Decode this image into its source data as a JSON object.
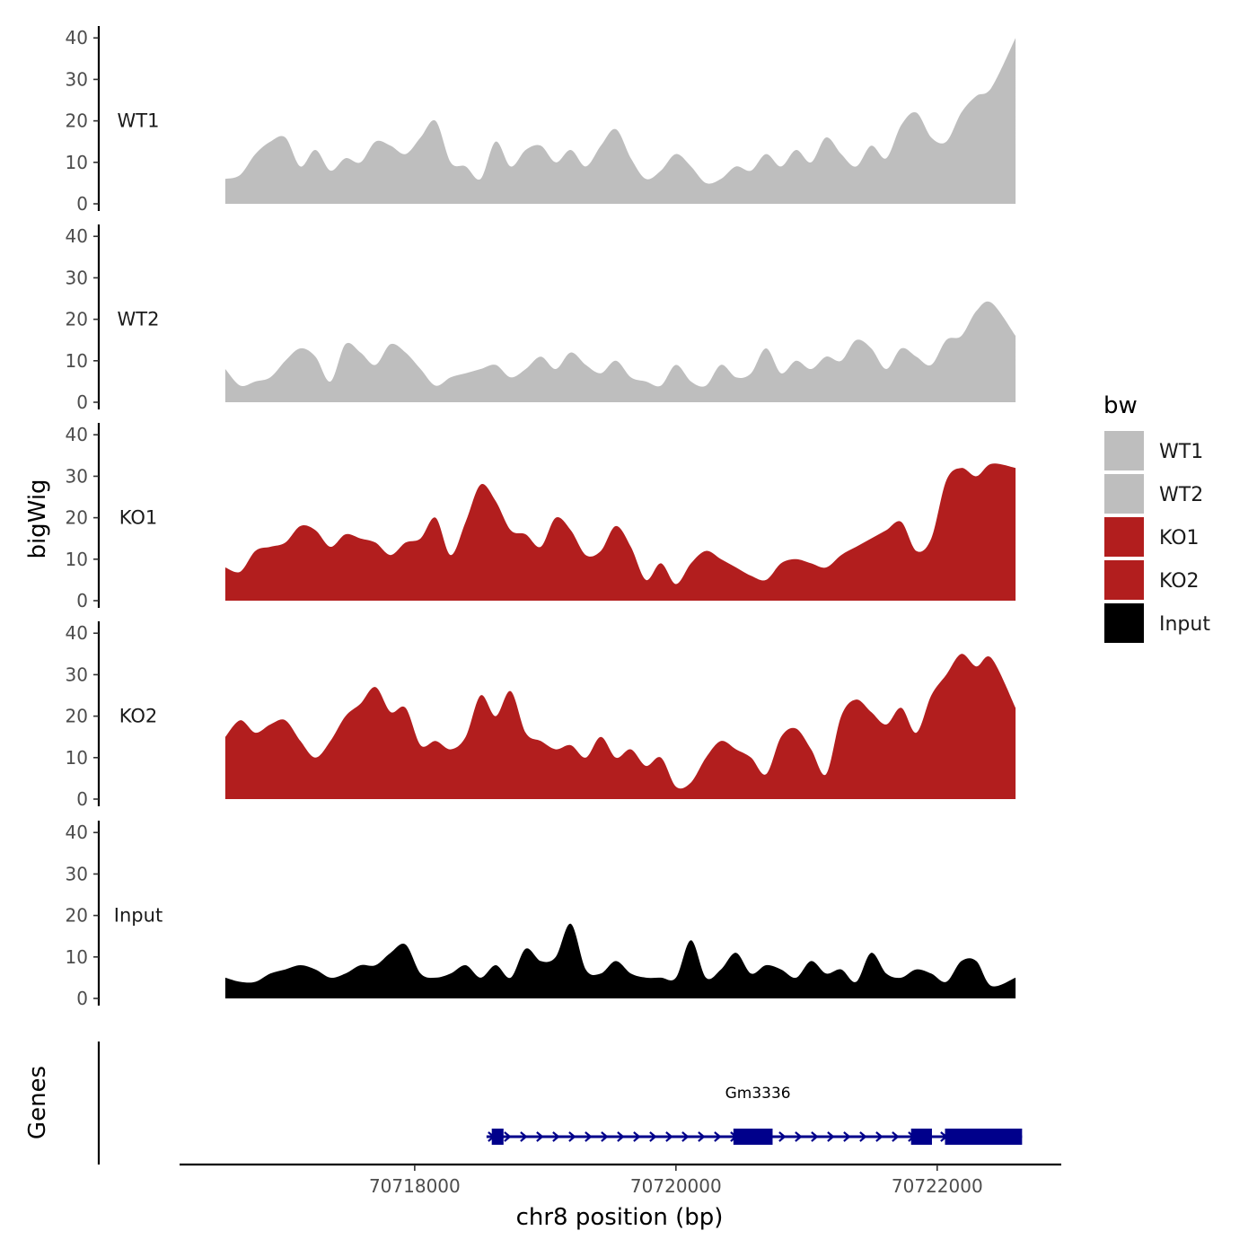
{
  "chart_data": {
    "type": "area",
    "ylabel": "bigWig",
    "xlabel": "chr8 position (bp)",
    "xlim": [
      70716200,
      70722950
    ],
    "ylim": [
      0,
      42
    ],
    "y_ticks": [
      0,
      10,
      20,
      30,
      40
    ],
    "x_ticks": [
      70718000,
      70720000,
      70722000
    ],
    "x_tick_labels": [
      "70718000",
      "70720000",
      "70722000"
    ],
    "legend": {
      "title": "bw",
      "placement": "right",
      "entries": [
        {
          "label": "WT1",
          "color": "#bebebe"
        },
        {
          "label": "WT2",
          "color": "#bebebe"
        },
        {
          "label": "KO1",
          "color": "#b21e1e"
        },
        {
          "label": "KO2",
          "color": "#b21e1e"
        },
        {
          "label": "Input",
          "color": "#000000"
        }
      ]
    },
    "x": [
      70716550,
      70716665,
      70716780,
      70716895,
      70717010,
      70717125,
      70717240,
      70717355,
      70717470,
      70717585,
      70717700,
      70717815,
      70717930,
      70718045,
      70718160,
      70718275,
      70718390,
      70718505,
      70718620,
      70718735,
      70718850,
      70718965,
      70719080,
      70719195,
      70719310,
      70719425,
      70719540,
      70719655,
      70719770,
      70719885,
      70720000,
      70720115,
      70720230,
      70720345,
      70720460,
      70720575,
      70720690,
      70720805,
      70720920,
      70721035,
      70721150,
      70721265,
      70721380,
      70721495,
      70721610,
      70721725,
      70721840,
      70721955,
      70722070,
      70722185,
      70722300,
      70722415,
      70722600
    ],
    "series": [
      {
        "name": "WT1",
        "color": "#bebebe",
        "values": [
          6,
          7,
          12,
          15,
          16,
          9,
          13,
          8,
          11,
          10,
          15,
          14,
          12,
          16,
          20,
          10,
          9,
          6,
          15,
          9,
          13,
          14,
          10,
          13,
          9,
          14,
          18,
          11,
          6,
          8,
          12,
          9,
          5,
          6,
          9,
          8,
          12,
          9,
          13,
          10,
          16,
          12,
          9,
          14,
          11,
          19,
          22,
          16,
          15,
          22,
          26,
          28,
          40
        ]
      },
      {
        "name": "WT2",
        "color": "#bebebe",
        "values": [
          8,
          4,
          5,
          6,
          10,
          13,
          11,
          5,
          14,
          12,
          9,
          14,
          12,
          8,
          4,
          6,
          7,
          8,
          9,
          6,
          8,
          11,
          8,
          12,
          9,
          7,
          10,
          6,
          5,
          4,
          9,
          5,
          4,
          9,
          6,
          7,
          13,
          7,
          10,
          8,
          11,
          10,
          15,
          13,
          8,
          13,
          11,
          9,
          15,
          16,
          22,
          24,
          16
        ]
      },
      {
        "name": "KO1",
        "color": "#b21e1e",
        "values": [
          8,
          7,
          12,
          13,
          14,
          18,
          17,
          13,
          16,
          15,
          14,
          11,
          14,
          15,
          20,
          11,
          19,
          28,
          24,
          17,
          16,
          13,
          20,
          17,
          11,
          12,
          18,
          13,
          5,
          9,
          4,
          9,
          12,
          10,
          8,
          6,
          5,
          9,
          10,
          9,
          8,
          11,
          13,
          15,
          17,
          19,
          12,
          15,
          29,
          32,
          30,
          33,
          32
        ]
      },
      {
        "name": "KO2",
        "color": "#b21e1e",
        "values": [
          15,
          19,
          16,
          18,
          19,
          14,
          10,
          14,
          20,
          23,
          27,
          21,
          22,
          13,
          14,
          12,
          15,
          25,
          20,
          26,
          16,
          14,
          12,
          13,
          10,
          15,
          10,
          12,
          8,
          10,
          3,
          4,
          10,
          14,
          12,
          10,
          6,
          15,
          17,
          12,
          6,
          20,
          24,
          21,
          18,
          22,
          16,
          25,
          30,
          35,
          32,
          34,
          22
        ]
      },
      {
        "name": "Input",
        "color": "#000000",
        "values": [
          5,
          4,
          4,
          6,
          7,
          8,
          7,
          5,
          6,
          8,
          8,
          11,
          13,
          6,
          5,
          6,
          8,
          5,
          8,
          5,
          12,
          9,
          10,
          18,
          7,
          6,
          9,
          6,
          5,
          5,
          5,
          14,
          5,
          7,
          11,
          6,
          8,
          7,
          5,
          9,
          6,
          7,
          4,
          11,
          6,
          5,
          7,
          6,
          4,
          9,
          9,
          3,
          5
        ]
      }
    ],
    "genes_track": {
      "label": "Genes",
      "genes": [
        {
          "name": "Gm3336",
          "strand": "+",
          "start": 70718550,
          "end": 70722650,
          "exons": [
            [
              70718590,
              70718680
            ],
            [
              70720440,
              70720740
            ],
            [
              70721800,
              70721960
            ],
            [
              70722060,
              70722650
            ]
          ],
          "color": "#00008b"
        }
      ]
    }
  }
}
